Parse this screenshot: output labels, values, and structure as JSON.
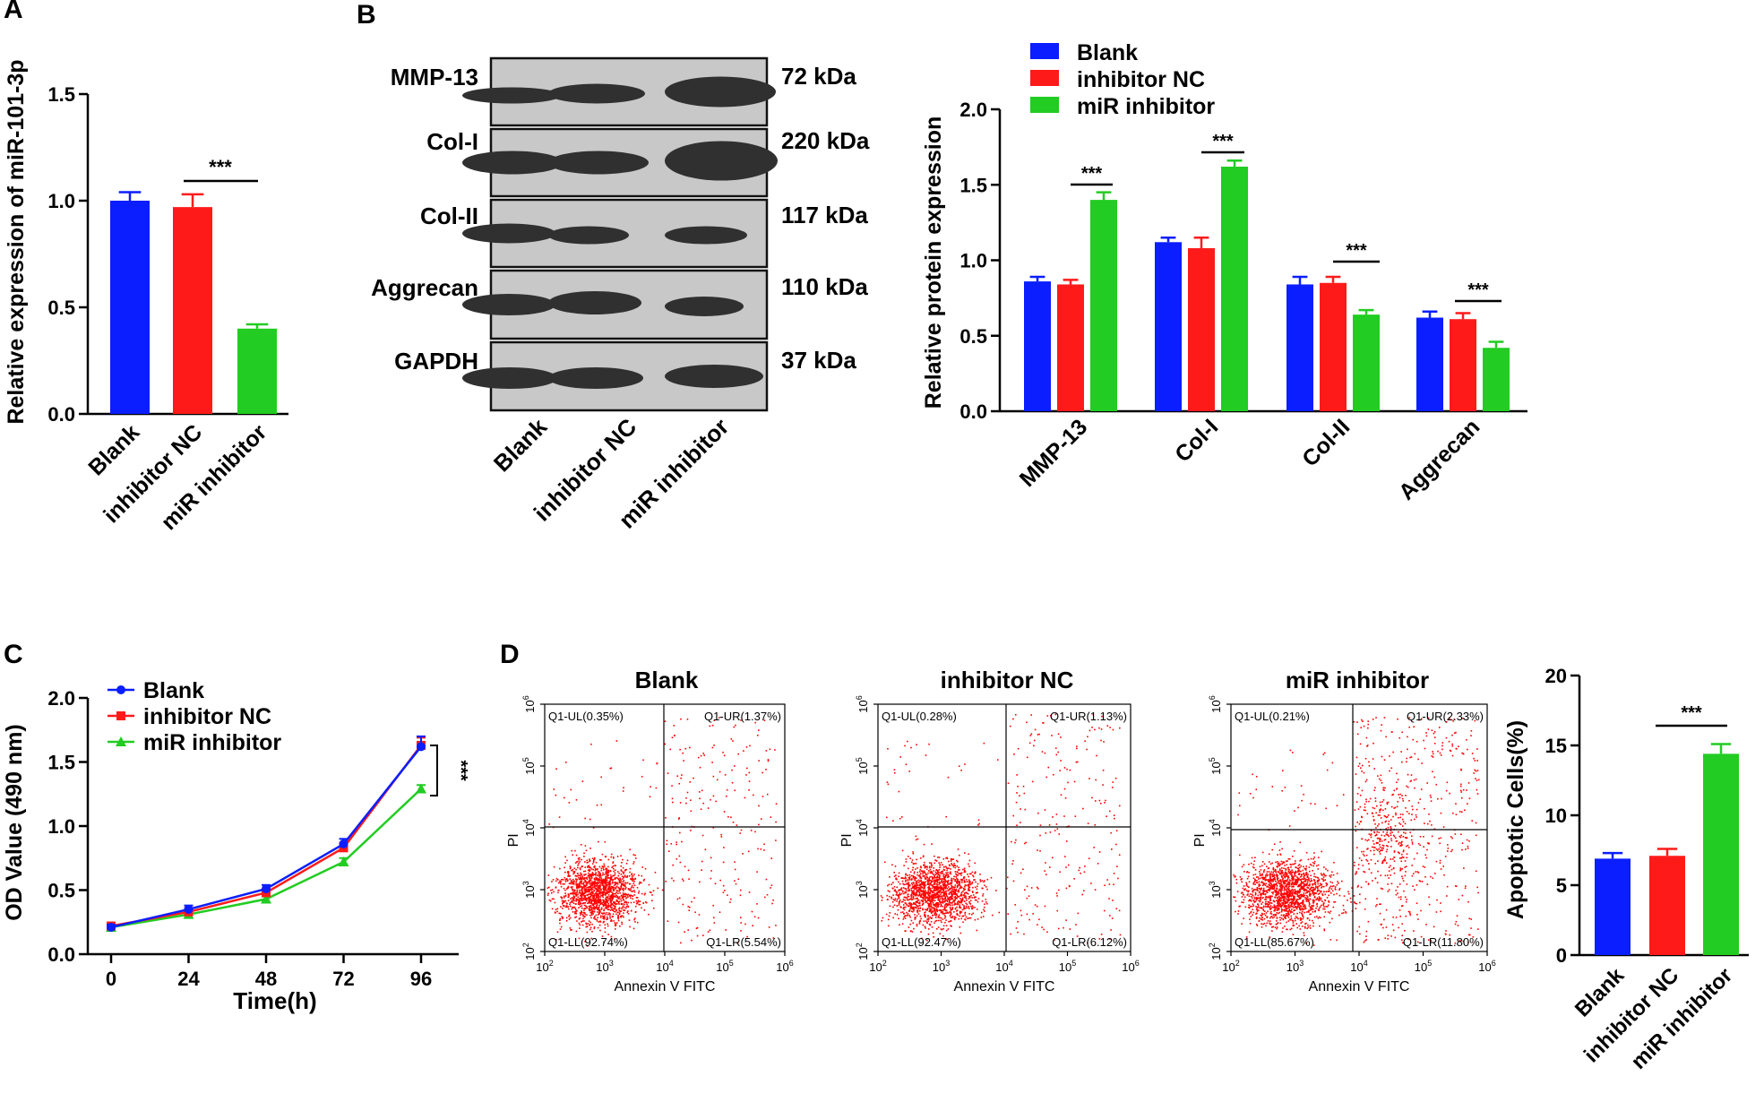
{
  "colors": {
    "blank": "#0a1eff",
    "nc": "#ff1a1a",
    "mir": "#22cc22",
    "dot": "#ff0000"
  },
  "panels": {
    "a": "A",
    "b": "B",
    "c": "C",
    "d": "D"
  },
  "chart_data": [
    {
      "id": "A",
      "type": "bar",
      "categories": [
        "Blank",
        "inhibitor NC",
        "miR inhibitor"
      ],
      "values": [
        1.0,
        0.97,
        0.4
      ],
      "errors": [
        0.04,
        0.06,
        0.02
      ],
      "ylabel": "Relative expression of miR-101-3p",
      "ylim": [
        0,
        1.5
      ],
      "yticks": [
        "0.0",
        "0.5",
        "1.0",
        "1.5"
      ],
      "significance": "***"
    },
    {
      "id": "B",
      "type": "bar",
      "categories": [
        "MMP-13",
        "Col-I",
        "Col-II",
        "Aggrecan"
      ],
      "series": [
        {
          "name": "Blank",
          "values": [
            0.86,
            1.12,
            0.84,
            0.62
          ],
          "errors": [
            0.03,
            0.03,
            0.05,
            0.04
          ]
        },
        {
          "name": "inhibitor NC",
          "values": [
            0.84,
            1.08,
            0.85,
            0.61
          ],
          "errors": [
            0.03,
            0.07,
            0.04,
            0.04
          ]
        },
        {
          "name": "miR inhibitor",
          "values": [
            1.4,
            1.62,
            0.64,
            0.42
          ],
          "errors": [
            0.05,
            0.04,
            0.03,
            0.04
          ]
        }
      ],
      "ylabel": "Relative protein expression",
      "ylim": [
        0,
        2.0
      ],
      "yticks": [
        "0.0",
        "0.5",
        "1.0",
        "1.5",
        "2.0"
      ],
      "significance": [
        "***",
        "***",
        "***",
        "***"
      ]
    },
    {
      "id": "C",
      "type": "line",
      "x": [
        0,
        24,
        48,
        72,
        96
      ],
      "xticks": [
        "0",
        "24",
        "48",
        "72",
        "96"
      ],
      "series": [
        {
          "name": "Blank",
          "values": [
            0.21,
            0.35,
            0.51,
            0.86,
            1.62
          ],
          "errors": [
            0.02,
            0.03,
            0.03,
            0.04,
            0.08
          ]
        },
        {
          "name": "inhibitor NC",
          "values": [
            0.22,
            0.33,
            0.48,
            0.83,
            1.63
          ],
          "errors": [
            0.02,
            0.03,
            0.03,
            0.04,
            0.06
          ]
        },
        {
          "name": "miR inhibitor",
          "values": [
            0.21,
            0.31,
            0.43,
            0.72,
            1.29
          ],
          "errors": [
            0.02,
            0.02,
            0.02,
            0.03,
            0.03
          ]
        }
      ],
      "xlabel": "Time(h)",
      "ylabel": "OD Value (490 nm)",
      "ylim": [
        0,
        2.0
      ],
      "yticks": [
        "0.0",
        "0.5",
        "1.0",
        "1.5",
        "2.0"
      ],
      "significance": "***"
    },
    {
      "id": "D-bar",
      "type": "bar",
      "categories": [
        "Blank",
        "inhibitor NC",
        "miR inhibitor"
      ],
      "values": [
        6.9,
        7.1,
        14.4
      ],
      "errors": [
        0.4,
        0.5,
        0.7
      ],
      "ylabel": "Apoptotic Cells(%)",
      "ylim": [
        0,
        20
      ],
      "yticks": [
        "0",
        "5",
        "10",
        "15",
        "20"
      ],
      "significance": "***"
    },
    {
      "id": "D-flow",
      "type": "scatter",
      "xlabel": "Annexin V FITC",
      "ylabel": "PI",
      "tick_exponents": [
        "2",
        "3",
        "4",
        "5",
        "6"
      ],
      "plots": [
        {
          "title": "Blank",
          "ul": "Q1-UL(0.35%)",
          "ur": "Q1-UR(1.37%)",
          "ll": "Q1-LL(92.74%)",
          "lr": "Q1-LR(5.54%)"
        },
        {
          "title": "inhibitor NC",
          "ul": "Q1-UL(0.28%)",
          "ur": "Q1-UR(1.13%)",
          "ll": "Q1-LL(92.47%)",
          "lr": "Q1-LR(6.12%)"
        },
        {
          "title": "miR inhibitor",
          "ul": "Q1-UL(0.21%)",
          "ur": "Q1-UR(2.33%)",
          "ll": "Q1-LL(85.67%)",
          "lr": "Q1-LR(11.80%)"
        }
      ]
    }
  ],
  "western_blot": {
    "rows": [
      {
        "protein": "MMP-13",
        "size": "72 kDa"
      },
      {
        "protein": "Col-I",
        "size": "220 kDa"
      },
      {
        "protein": "Col-II",
        "size": "117 kDa"
      },
      {
        "protein": "Aggrecan",
        "size": "110 kDa"
      },
      {
        "protein": "GAPDH",
        "size": "37 kDa"
      }
    ],
    "lanes": [
      "Blank",
      "inhibitor NC",
      "miR inhibitor"
    ]
  }
}
